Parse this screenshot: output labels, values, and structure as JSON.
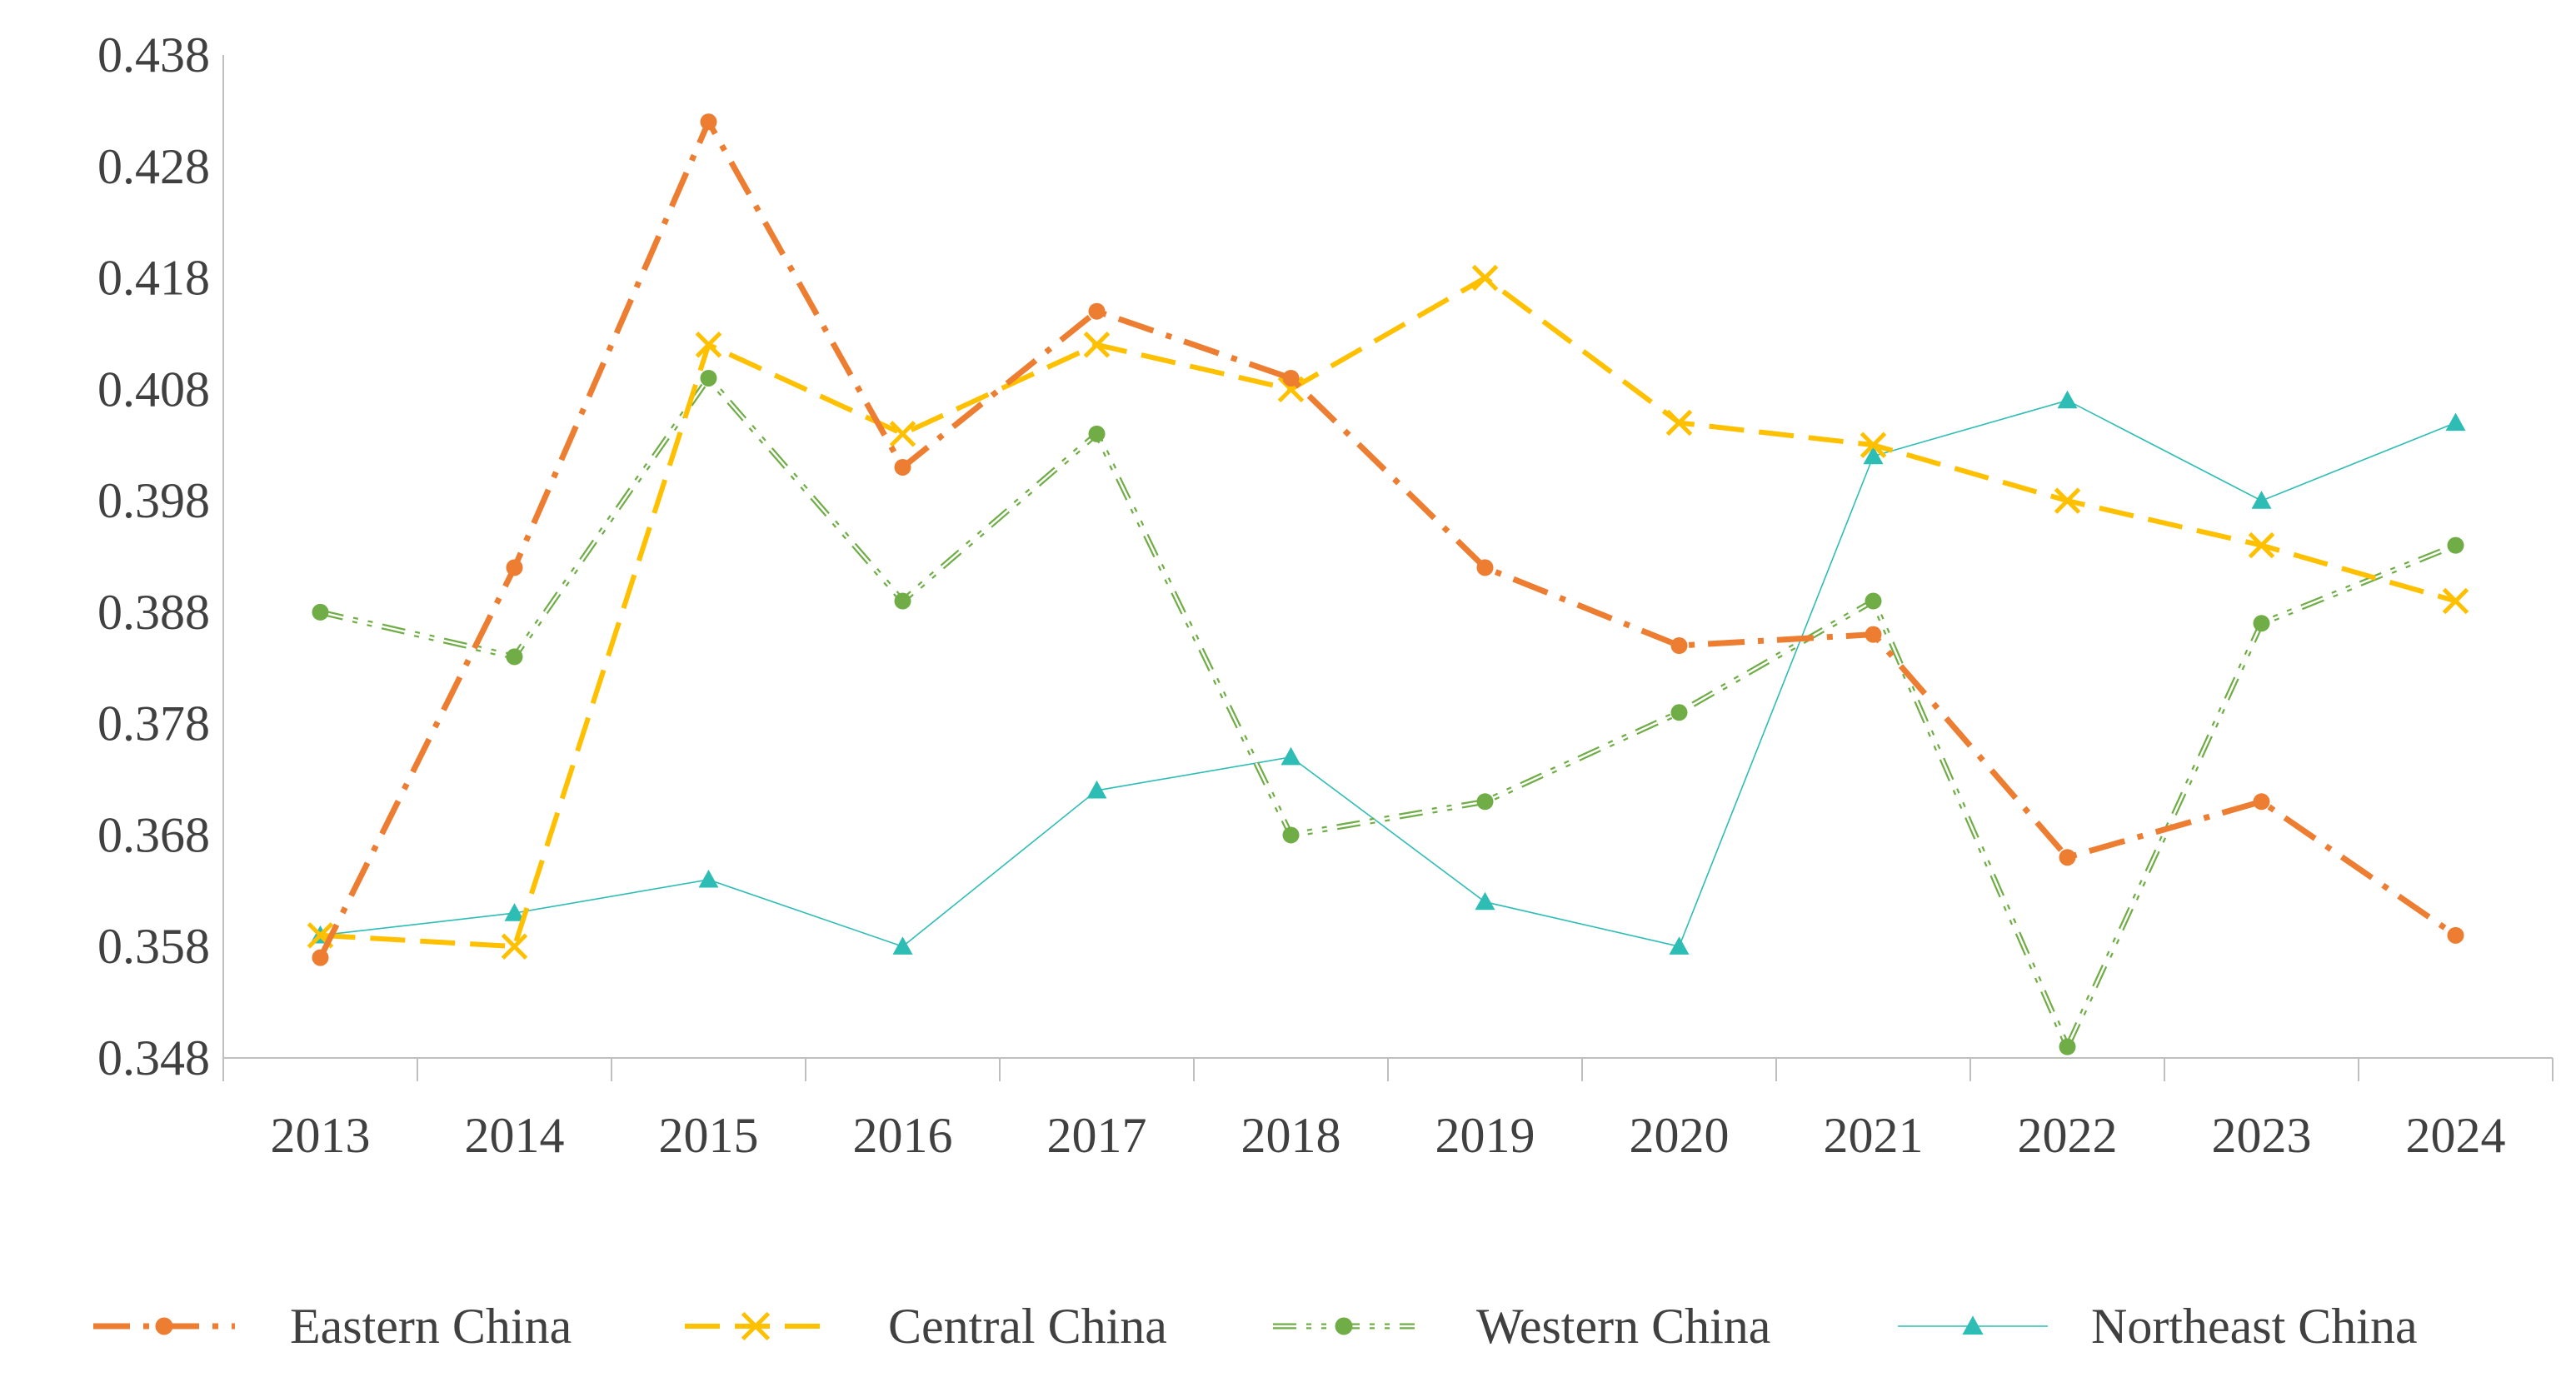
{
  "chart_data": {
    "type": "line",
    "title": "",
    "xlabel": "",
    "ylabel": "",
    "categories": [
      "2013",
      "2014",
      "2015",
      "2016",
      "2017",
      "2018",
      "2019",
      "2020",
      "2021",
      "2022",
      "2023",
      "2024"
    ],
    "ylim": [
      0.348,
      0.438
    ],
    "yticks": [
      "0.348",
      "0.358",
      "0.368",
      "0.378",
      "0.388",
      "0.398",
      "0.408",
      "0.418",
      "0.428",
      "0.438"
    ],
    "grid": false,
    "legend_position": "bottom",
    "series": [
      {
        "name": "Eastern China",
        "color": "#ED7D31",
        "marker": "circle",
        "dash": "long-dash-dot",
        "values": [
          0.357,
          0.392,
          0.432,
          0.401,
          0.415,
          0.409,
          0.392,
          0.385,
          0.386,
          0.366,
          0.371,
          0.359
        ]
      },
      {
        "name": "Central China",
        "color": "#FFC000",
        "marker": "x",
        "dash": "long-dash",
        "values": [
          0.359,
          0.358,
          0.412,
          0.404,
          0.412,
          0.408,
          0.418,
          0.405,
          0.403,
          0.398,
          0.394,
          0.389
        ]
      },
      {
        "name": "Western China",
        "color": "#70AD47",
        "marker": "circle",
        "dash": "dash-dot-dot-double",
        "values": [
          0.388,
          0.384,
          0.409,
          0.389,
          0.404,
          0.368,
          0.371,
          0.379,
          0.389,
          0.349,
          0.387,
          0.394
        ]
      },
      {
        "name": "Northeast China",
        "color": "#2EBDB5",
        "marker": "triangle",
        "dash": "solid-thin",
        "values": [
          0.359,
          0.361,
          0.364,
          0.358,
          0.372,
          0.375,
          0.362,
          0.358,
          0.402,
          0.407,
          0.398,
          0.405
        ]
      }
    ]
  }
}
